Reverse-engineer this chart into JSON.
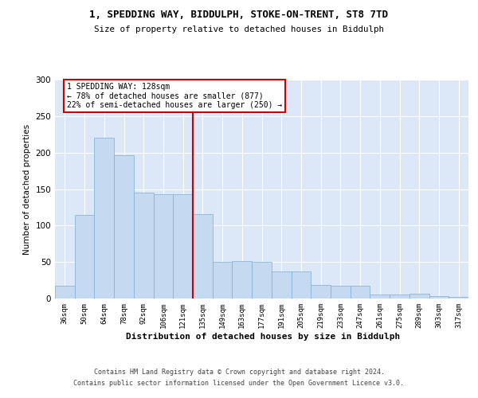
{
  "title_line1": "1, SPEDDING WAY, BIDDULPH, STOKE-ON-TRENT, ST8 7TD",
  "title_line2": "Size of property relative to detached houses in Biddulph",
  "xlabel": "Distribution of detached houses by size in Biddulph",
  "ylabel": "Number of detached properties",
  "categories": [
    "36sqm",
    "50sqm",
    "64sqm",
    "78sqm",
    "92sqm",
    "106sqm",
    "121sqm",
    "135sqm",
    "149sqm",
    "163sqm",
    "177sqm",
    "191sqm",
    "205sqm",
    "219sqm",
    "233sqm",
    "247sqm",
    "261sqm",
    "275sqm",
    "289sqm",
    "303sqm",
    "317sqm"
  ],
  "values": [
    18,
    115,
    220,
    196,
    145,
    143,
    143,
    116,
    50,
    51,
    50,
    37,
    37,
    19,
    18,
    18,
    5,
    5,
    7,
    3,
    2
  ],
  "bar_color": "#c5d9f0",
  "bar_edge_color": "#7aafd4",
  "marker_label": "1 SPEDDING WAY: 128sqm",
  "annotation_line1": "← 78% of detached houses are smaller (877)",
  "annotation_line2": "22% of semi-detached houses are larger (250) →",
  "annotation_box_edge": "#cc0000",
  "marker_line_color": "#cc0000",
  "ylim": [
    0,
    300
  ],
  "yticks": [
    0,
    50,
    100,
    150,
    200,
    250,
    300
  ],
  "background_color": "#dce8f8",
  "footer_line1": "Contains HM Land Registry data © Crown copyright and database right 2024.",
  "footer_line2": "Contains public sector information licensed under the Open Government Licence v3.0."
}
